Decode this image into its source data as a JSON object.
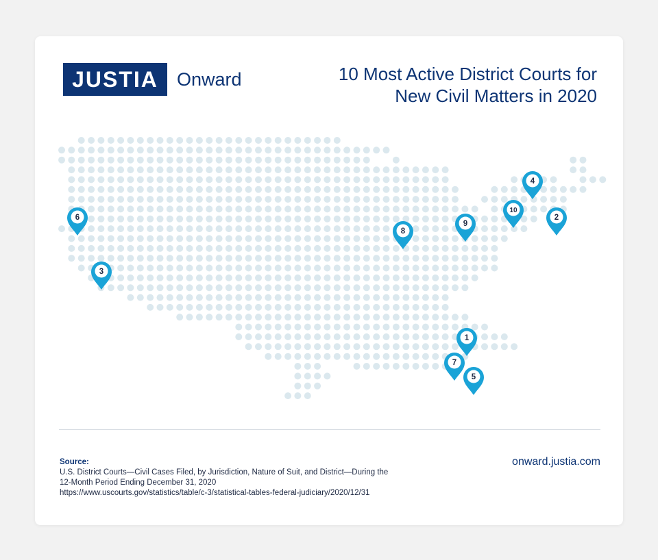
{
  "brand": {
    "logo_text": "JUSTIA",
    "logo_sub": "Onward"
  },
  "title_lines": [
    "10 Most Active District Courts for",
    "New Civil Matters in 2020"
  ],
  "colors": {
    "navy": "#0d3474",
    "marker": "#1aa3d7",
    "dot": "#dbe8ee"
  },
  "markers": [
    {
      "label": "6",
      "place": "Washington, Western District"
    },
    {
      "label": "3",
      "place": "California, Central District"
    },
    {
      "label": "8",
      "place": "Illinois, Northern District"
    },
    {
      "label": "9",
      "place": "Ohio"
    },
    {
      "label": "10",
      "place": "New Jersey"
    },
    {
      "label": "4",
      "place": "New York"
    },
    {
      "label": "2",
      "place": "New York, Southern District"
    },
    {
      "label": "1",
      "place": "Florida, Middle District"
    },
    {
      "label": "7",
      "place": "Florida"
    },
    {
      "label": "5",
      "place": "Florida, Southern District"
    }
  ],
  "source": {
    "heading": "Source:",
    "line1": "U.S. District Courts—Civil Cases Filed, by Jurisdiction, Nature of Suit, and District—During the",
    "line2": "12-Month Period Ending December 31, 2020",
    "line3": "https://www.uscourts.gov/statistics/table/c-3/statistical-tables-federal-judiciary/2020/12/31"
  },
  "site_url": "onward.justia.com"
}
